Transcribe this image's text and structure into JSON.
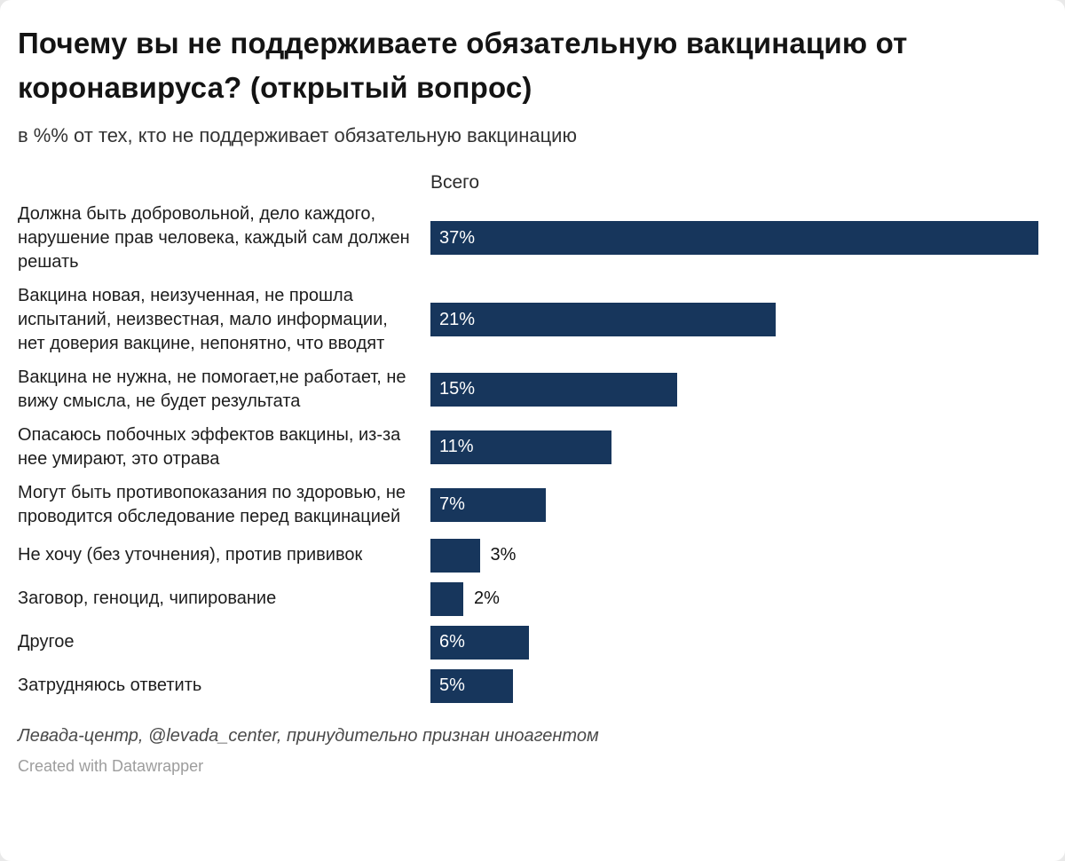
{
  "chart_data": {
    "type": "bar",
    "orientation": "horizontal",
    "title": "Почему вы не поддерживаете обязательную вакцинацию от коронавируса? (открытый вопрос)",
    "subtitle": "в %% от тех, кто не поддерживает обязательную вакцинацию",
    "value_header": "Всего",
    "unit": "%",
    "categories": [
      "Должна быть добровольной, дело каждого, нарушение прав человека, каждый сам должен решать",
      "Вакцина новая, неизученная, не прошла испытаний, неизвестная, мало информации, нет доверия вакцине, непонятно, что вводят",
      "Вакцина не нужна, не помогает,не работает, не вижу смысла, не будет результата",
      "Опасаюсь побочных эффектов вакцины, из-за нее умирают, это отрава",
      "Могут быть противопоказания по здоровью, не проводится обследование перед вакцинацией",
      "Не хочу (без уточнения), против прививок",
      "Заговор, геноцид, чипирование",
      "Другое",
      "Затрудняюсь ответить"
    ],
    "values": [
      37,
      21,
      15,
      11,
      7,
      3,
      2,
      6,
      5
    ],
    "xlim": [
      0,
      37
    ],
    "grid": false,
    "legend": false,
    "bar_color": "#17365c",
    "value_label_inside_color": "#ffffff",
    "value_label_outside_color": "#111111",
    "value_labels_inside_min": 5
  },
  "footer": {
    "source_note": "Левада-центр, @levada_center, принудительно признан иноагентом",
    "credit": "Created with Datawrapper"
  }
}
